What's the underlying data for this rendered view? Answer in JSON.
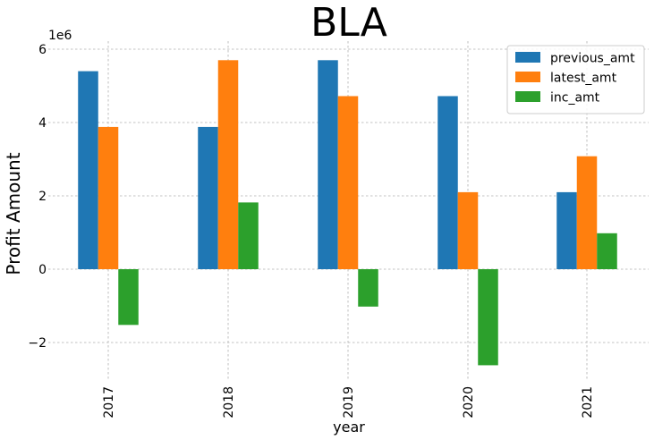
{
  "chart_data": {
    "type": "bar",
    "title": "BLA",
    "xlabel": "year",
    "ylabel": "Profit Amount",
    "offset_label": "1e6",
    "categories": [
      "2017",
      "2018",
      "2019",
      "2020",
      "2021"
    ],
    "series": [
      {
        "name": "previous_amt",
        "color": "#1f77b4",
        "values": [
          5400000,
          3880000,
          5700000,
          4720000,
          2100000
        ]
      },
      {
        "name": "latest_amt",
        "color": "#ff7f0e",
        "values": [
          3880000,
          5700000,
          4720000,
          2100000,
          3080000
        ]
      },
      {
        "name": "inc_amt",
        "color": "#2ca02c",
        "values": [
          -1520000,
          1820000,
          -1020000,
          -2620000,
          980000
        ]
      }
    ],
    "ylim": [
      -3000000,
      6200000
    ],
    "yticks": [
      -2000000,
      0,
      2000000,
      4000000,
      6000000
    ],
    "ytick_labels": [
      "−2",
      "0",
      "2",
      "4",
      "6"
    ],
    "grid": true,
    "legend": "top-right"
  }
}
